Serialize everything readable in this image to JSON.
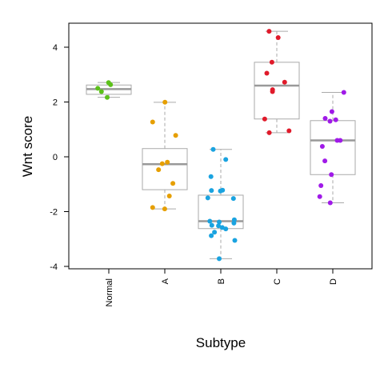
{
  "chart_data": {
    "type": "box",
    "xlabel": "Subtype",
    "ylabel": "Wnt score",
    "ylim": [
      -4.1,
      4.9
    ],
    "yticks": [
      -4,
      -2,
      0,
      2,
      4
    ],
    "grid": false,
    "categories": [
      "Normal",
      "A",
      "B",
      "C",
      "D"
    ],
    "series": [
      {
        "category": "Normal",
        "color": "#5cc11a",
        "box": {
          "whisker_low": 2.17,
          "q1": 2.28,
          "median": 2.47,
          "q3": 2.62,
          "whisker_high": 2.71
        },
        "points": [
          2.71,
          2.63,
          2.5,
          2.38,
          2.17
        ]
      },
      {
        "category": "A",
        "color": "#e69f00",
        "box": {
          "whisker_low": -1.9,
          "q1": -1.2,
          "median": -0.27,
          "q3": 0.3,
          "whisker_high": 1.99
        },
        "points": [
          1.99,
          1.27,
          0.78,
          -0.2,
          -0.25,
          -0.47,
          -0.97,
          -1.43,
          -1.85,
          -1.9
        ]
      },
      {
        "category": "B",
        "color": "#1aa3e0",
        "box": {
          "whisker_low": -3.72,
          "q1": -2.62,
          "median": -2.35,
          "q3": -1.4,
          "whisker_high": 0.27
        },
        "points": [
          0.27,
          -0.1,
          -0.72,
          -1.22,
          -1.25,
          -1.23,
          -1.5,
          -1.52,
          -2.3,
          -2.35,
          -2.38,
          -2.42,
          -2.5,
          -2.52,
          -2.58,
          -2.63,
          -2.75,
          -2.88,
          -3.05,
          -3.72
        ]
      },
      {
        "category": "C",
        "color": "#e01a2a",
        "box": {
          "whisker_low": 0.88,
          "q1": 1.38,
          "median": 2.6,
          "q3": 3.45,
          "whisker_high": 4.58
        },
        "points": [
          4.58,
          4.35,
          3.45,
          3.05,
          2.72,
          2.45,
          2.38,
          1.38,
          0.95,
          0.88
        ]
      },
      {
        "category": "D",
        "color": "#a01ae8",
        "box": {
          "whisker_low": -1.68,
          "q1": -0.65,
          "median": 0.6,
          "q3": 1.32,
          "whisker_high": 2.35
        },
        "points": [
          2.35,
          1.65,
          1.4,
          1.35,
          1.3,
          0.6,
          0.6,
          0.38,
          -0.15,
          -0.65,
          -1.05,
          -1.45,
          -1.68
        ]
      }
    ]
  }
}
